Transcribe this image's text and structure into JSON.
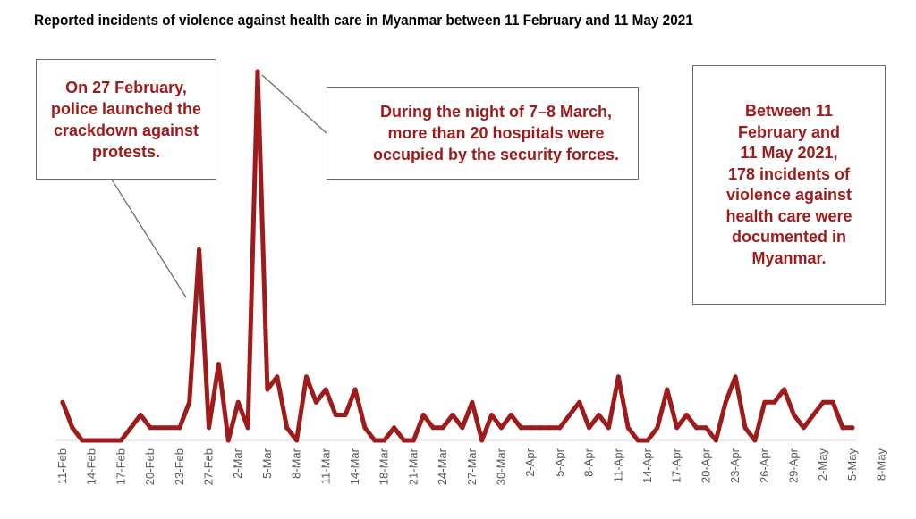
{
  "title": "Reported incidents of violence against health care in Myanmar between 11 February and 11 May 2021",
  "annotations": {
    "crackdown": "On 27 February,\npolice launched the\ncrackdown against\nprotests.",
    "hospitals": "During the night of 7–8 March,\nmore than 20 hospitals were\noccupied by the security forces.",
    "summary": "Between 11\nFebruary and\n11 May 2021,\n178 incidents of\nviolence against\nhealth care were\ndocumented in\nMyanmar."
  },
  "colors": {
    "line": "#9e1b1b",
    "callout_border": "#6d6d6d",
    "axis": "#d9d9d9"
  },
  "chart_data": {
    "type": "line",
    "title": "Reported incidents of violence against health care in Myanmar between 11 February and 11 May 2021",
    "xlabel": "",
    "ylabel": "",
    "ylim": [
      0,
      29
    ],
    "grid": false,
    "tick_labels": [
      "11-Feb",
      "14-Feb",
      "17-Feb",
      "20-Feb",
      "23-Feb",
      "27-Feb",
      "2-Mar",
      "5-Mar",
      "8-Mar",
      "11-Mar",
      "14-Mar",
      "18-Mar",
      "21-Mar",
      "24-Mar",
      "27-Mar",
      "30-Mar",
      "2-Apr",
      "5-Apr",
      "8-Apr",
      "11-Apr",
      "14-Apr",
      "17-Apr",
      "20-Apr",
      "23-Apr",
      "26-Apr",
      "29-Apr",
      "2-May",
      "5-May",
      "8-May"
    ],
    "series": [
      {
        "values": [
          3,
          1,
          0,
          0,
          0,
          0,
          0,
          1,
          2,
          1,
          1,
          1,
          1,
          3,
          15,
          1,
          6,
          0,
          3,
          1,
          29,
          4,
          5,
          1,
          0,
          5,
          3,
          4,
          2,
          2,
          4,
          1,
          0,
          0,
          1,
          0,
          0,
          2,
          1,
          1,
          2,
          1,
          3,
          0,
          2,
          1,
          2,
          1,
          1,
          1,
          1,
          1,
          2,
          3,
          1,
          2,
          1,
          5,
          1,
          0,
          0,
          1,
          4,
          1,
          2,
          1,
          1,
          0,
          3,
          5,
          1,
          0,
          3,
          3,
          4,
          2,
          1,
          2,
          3,
          3,
          1,
          1
        ]
      }
    ]
  }
}
